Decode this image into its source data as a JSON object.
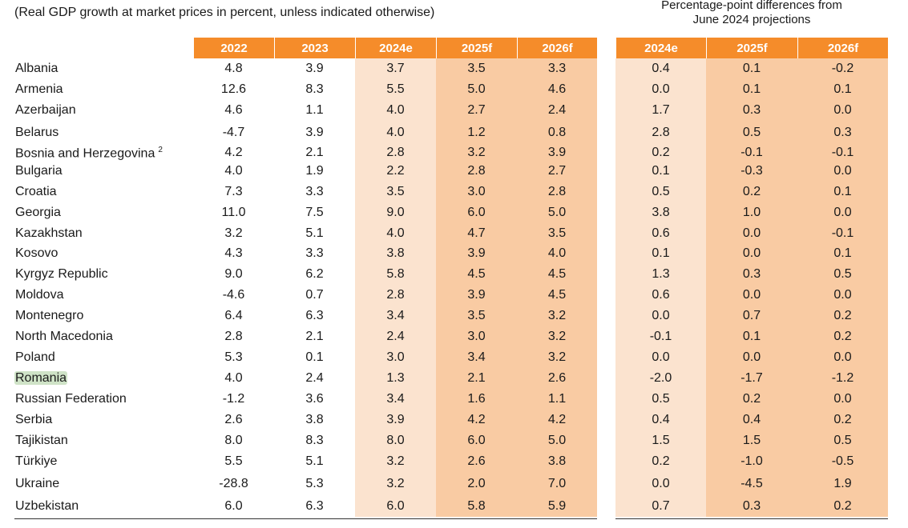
{
  "note": "(Real GDP growth at market prices in percent, unless indicated otherwise)",
  "diff_title": "Percentage-point differences from\nJune 2024 projections",
  "colors": {
    "header": "#f58c2a",
    "light_band": "#fbe3cf",
    "dark_band": "#f9cba3",
    "highlight": "#cfe3c7"
  },
  "headers_main": [
    "2022",
    "2023",
    "2024e",
    "2025f",
    "2026f"
  ],
  "headers_diff": [
    "2024e",
    "2025f",
    "2026f"
  ],
  "rows": [
    {
      "name": "Albania",
      "sup": "",
      "highlight": false,
      "vals": [
        "4.8",
        "3.9",
        "3.7",
        "3.5",
        "3.3"
      ],
      "diff": [
        "0.4",
        "0.1",
        "-0.2"
      ]
    },
    {
      "name": "Armenia",
      "sup": "",
      "highlight": false,
      "vals": [
        "12.6",
        "8.3",
        "5.5",
        "5.0",
        "4.6"
      ],
      "diff": [
        "0.0",
        "0.1",
        "0.1"
      ]
    },
    {
      "name": "Azerbaijan",
      "sup": "",
      "highlight": false,
      "vals": [
        "4.6",
        "1.1",
        "4.0",
        "2.7",
        "2.4"
      ],
      "diff": [
        "1.7",
        "0.3",
        "0.0"
      ]
    },
    {
      "name": "Belarus",
      "sup": "",
      "highlight": false,
      "vals": [
        "-4.7",
        "3.9",
        "4.0",
        "1.2",
        "0.8"
      ],
      "diff": [
        "2.8",
        "0.5",
        "0.3"
      ]
    },
    {
      "name": "Bosnia and Herzegovina",
      "sup": "2",
      "highlight": false,
      "vals": [
        "4.2",
        "2.1",
        "2.8",
        "3.2",
        "3.9"
      ],
      "diff": [
        "0.2",
        "-0.1",
        "-0.1"
      ]
    },
    {
      "name": "Bulgaria",
      "sup": "",
      "highlight": false,
      "vals": [
        "4.0",
        "1.9",
        "2.2",
        "2.8",
        "2.7"
      ],
      "diff": [
        "0.1",
        "-0.3",
        "0.0"
      ]
    },
    {
      "name": "Croatia",
      "sup": "",
      "highlight": false,
      "vals": [
        "7.3",
        "3.3",
        "3.5",
        "3.0",
        "2.8"
      ],
      "diff": [
        "0.5",
        "0.2",
        "0.1"
      ]
    },
    {
      "name": "Georgia",
      "sup": "",
      "highlight": false,
      "vals": [
        "11.0",
        "7.5",
        "9.0",
        "6.0",
        "5.0"
      ],
      "diff": [
        "3.8",
        "1.0",
        "0.0"
      ]
    },
    {
      "name": "Kazakhstan",
      "sup": "",
      "highlight": false,
      "vals": [
        "3.2",
        "5.1",
        "4.0",
        "4.7",
        "3.5"
      ],
      "diff": [
        "0.6",
        "0.0",
        "-0.1"
      ]
    },
    {
      "name": "Kosovo",
      "sup": "",
      "highlight": false,
      "vals": [
        "4.3",
        "3.3",
        "3.8",
        "3.9",
        "4.0"
      ],
      "diff": [
        "0.1",
        "0.0",
        "0.1"
      ]
    },
    {
      "name": "Kyrgyz Republic",
      "sup": "",
      "highlight": false,
      "vals": [
        "9.0",
        "6.2",
        "5.8",
        "4.5",
        "4.5"
      ],
      "diff": [
        "1.3",
        "0.3",
        "0.5"
      ]
    },
    {
      "name": "Moldova",
      "sup": "",
      "highlight": false,
      "vals": [
        "-4.6",
        "0.7",
        "2.8",
        "3.9",
        "4.5"
      ],
      "diff": [
        "0.6",
        "0.0",
        "0.0"
      ]
    },
    {
      "name": "Montenegro",
      "sup": "",
      "highlight": false,
      "vals": [
        "6.4",
        "6.3",
        "3.4",
        "3.5",
        "3.2"
      ],
      "diff": [
        "0.0",
        "0.7",
        "0.2"
      ]
    },
    {
      "name": "North Macedonia",
      "sup": "",
      "highlight": false,
      "vals": [
        "2.8",
        "2.1",
        "2.4",
        "3.0",
        "3.2"
      ],
      "diff": [
        "-0.1",
        "0.1",
        "0.2"
      ]
    },
    {
      "name": "Poland",
      "sup": "",
      "highlight": false,
      "vals": [
        "5.3",
        "0.1",
        "3.0",
        "3.4",
        "3.2"
      ],
      "diff": [
        "0.0",
        "0.0",
        "0.0"
      ]
    },
    {
      "name": "Romania",
      "sup": "",
      "highlight": true,
      "vals": [
        "4.0",
        "2.4",
        "1.3",
        "2.1",
        "2.6"
      ],
      "diff": [
        "-2.0",
        "-1.7",
        "-1.2"
      ]
    },
    {
      "name": "Russian Federation",
      "sup": "",
      "highlight": false,
      "vals": [
        "-1.2",
        "3.6",
        "3.4",
        "1.6",
        "1.1"
      ],
      "diff": [
        "0.5",
        "0.2",
        "0.0"
      ]
    },
    {
      "name": "Serbia",
      "sup": "",
      "highlight": false,
      "vals": [
        "2.6",
        "3.8",
        "3.9",
        "4.2",
        "4.2"
      ],
      "diff": [
        "0.4",
        "0.4",
        "0.2"
      ]
    },
    {
      "name": "Tajikistan",
      "sup": "",
      "highlight": false,
      "vals": [
        "8.0",
        "8.3",
        "8.0",
        "6.0",
        "5.0"
      ],
      "diff": [
        "1.5",
        "1.5",
        "0.5"
      ]
    },
    {
      "name": "Türkiye",
      "sup": "",
      "highlight": false,
      "vals": [
        "5.5",
        "5.1",
        "3.2",
        "2.6",
        "3.8"
      ],
      "diff": [
        "0.2",
        "-1.0",
        "-0.5"
      ]
    },
    {
      "name": "Ukraine",
      "sup": "",
      "highlight": false,
      "vals": [
        "-28.8",
        "5.3",
        "3.2",
        "2.0",
        "7.0"
      ],
      "diff": [
        "0.0",
        "-4.5",
        "1.9"
      ]
    },
    {
      "name": "Uzbekistan",
      "sup": "",
      "highlight": false,
      "vals": [
        "6.0",
        "6.3",
        "6.0",
        "5.8",
        "5.9"
      ],
      "diff": [
        "0.7",
        "0.3",
        "0.2"
      ]
    }
  ]
}
